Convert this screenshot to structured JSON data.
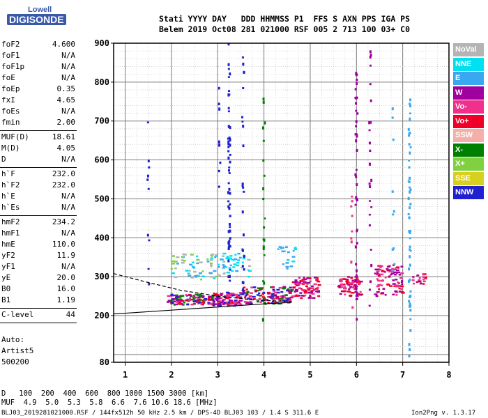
{
  "logo": {
    "line1": "Lowell",
    "line2": "DIGISONDE"
  },
  "header": {
    "labels_row": "Stati YYYY DAY   DDD HHMMSS P1  FFS S AXN PPS IGA PS",
    "values_row": "Belem 2019 Oct08 281 021000 RSF 005 2 713 100 03+ C0"
  },
  "params": [
    {
      "group": 1,
      "k": "foF2",
      "v": "4.600"
    },
    {
      "group": 1,
      "k": "foF1",
      "v": "N/A"
    },
    {
      "group": 1,
      "k": "foF1p",
      "v": "N/A"
    },
    {
      "group": 1,
      "k": "foE",
      "v": "N/A"
    },
    {
      "group": 1,
      "k": "foEp",
      "v": "0.35"
    },
    {
      "group": 1,
      "k": "fxI",
      "v": "4.65"
    },
    {
      "group": 1,
      "k": "foEs",
      "v": "N/A"
    },
    {
      "group": 1,
      "k": "fmin",
      "v": "2.00"
    },
    {
      "group": 2,
      "k": "MUF(D)",
      "v": "18.61"
    },
    {
      "group": 2,
      "k": "M(D)",
      "v": "4.05"
    },
    {
      "group": 2,
      "k": "D",
      "v": "N/A"
    },
    {
      "group": 3,
      "k": "h`F",
      "v": "232.0"
    },
    {
      "group": 3,
      "k": "h`F2",
      "v": "232.0"
    },
    {
      "group": 3,
      "k": "h`E",
      "v": "N/A"
    },
    {
      "group": 3,
      "k": "h`Es",
      "v": "N/A"
    },
    {
      "group": 4,
      "k": "hmF2",
      "v": "234.2"
    },
    {
      "group": 4,
      "k": "hmF1",
      "v": "N/A"
    },
    {
      "group": 4,
      "k": "hmE",
      "v": "110.0"
    },
    {
      "group": 4,
      "k": "yF2",
      "v": "11.9"
    },
    {
      "group": 4,
      "k": "yF1",
      "v": "N/A"
    },
    {
      "group": 4,
      "k": "yE",
      "v": "20.0"
    },
    {
      "group": 4,
      "k": "B0",
      "v": "16.0"
    },
    {
      "group": 4,
      "k": "B1",
      "v": "1.19"
    },
    {
      "group": 5,
      "k": "C-level",
      "v": "44"
    }
  ],
  "auto": {
    "line1": "Auto:",
    "line2": "Artist5",
    "line3": "500200"
  },
  "legend": [
    {
      "label": "NoVal",
      "color": "#b4b4b4"
    },
    {
      "label": "NNE",
      "color": "#00e0f0"
    },
    {
      "label": "E",
      "color": "#3aa8f0"
    },
    {
      "label": "W",
      "color": "#a000a0"
    },
    {
      "label": "Vo-",
      "color": "#f0308c"
    },
    {
      "label": "Vo+",
      "color": "#f00028"
    },
    {
      "label": "SSW",
      "color": "#f4b0a8"
    },
    {
      "label": "X-",
      "color": "#008000"
    },
    {
      "label": "X+",
      "color": "#80d040"
    },
    {
      "label": "SSE",
      "color": "#d8d020"
    },
    {
      "label": "NNW",
      "color": "#2020d0"
    }
  ],
  "footer": {
    "d_row": "D   100  200  400  600  800 1000 1500 3000 [km]",
    "muf_row": "MUF  4.9  5.0  5.3  5.8  6.6  7.6 10.6 18.6 [MHz]",
    "info_left": "BLJ03_2019281021000.RSF / 144fx512h 50 kHz 2.5 km / DPS-4D BLJ03 103 / 1.4 S 311.6 E",
    "info_right": "Ion2Png v. 1.3.17"
  },
  "chart_data": {
    "type": "scatter",
    "title": "",
    "xlabel": "",
    "ylabel": "",
    "xlim": [
      0.75,
      8
    ],
    "ylim": [
      80,
      900
    ],
    "x_ticks": [
      1,
      2,
      3,
      4,
      5,
      6,
      7,
      8
    ],
    "y_ticks": [
      80,
      200,
      300,
      400,
      500,
      600,
      700,
      800,
      900
    ],
    "grid": true,
    "traces": [
      {
        "name": "F2 O-trace",
        "style": "solid",
        "points": [
          [
            0.75,
            204
          ],
          [
            2.0,
            214
          ],
          [
            3.0,
            222
          ],
          [
            4.0,
            230
          ],
          [
            4.6,
            234
          ]
        ]
      },
      {
        "name": "F2 X-trace",
        "style": "dashed",
        "points": [
          [
            0.75,
            308
          ],
          [
            1.5,
            285
          ],
          [
            2.2,
            265
          ],
          [
            3.0,
            250
          ],
          [
            3.8,
            240
          ],
          [
            4.6,
            236
          ]
        ]
      }
    ],
    "echo_clusters": [
      {
        "x": [
          1.9,
          2.9
        ],
        "h": [
          228,
          255
        ],
        "colors": [
          "#f00028",
          "#a000a0",
          "#f0308c",
          "#008000",
          "#2020d0"
        ],
        "n": 120
      },
      {
        "x": [
          2.9,
          3.5
        ],
        "h": [
          225,
          260
        ],
        "colors": [
          "#f00028",
          "#a000a0",
          "#f0308c",
          "#2020d0"
        ],
        "n": 110
      },
      {
        "x": [
          3.5,
          4.6
        ],
        "h": [
          230,
          275
        ],
        "colors": [
          "#f00028",
          "#a000a0",
          "#f0308c",
          "#008000",
          "#2020d0"
        ],
        "n": 140
      },
      {
        "x": [
          4.6,
          5.2
        ],
        "h": [
          245,
          300
        ],
        "colors": [
          "#f00028",
          "#f0308c",
          "#a000a0"
        ],
        "n": 90
      },
      {
        "x": [
          5.6,
          6.1
        ],
        "h": [
          250,
          300
        ],
        "colors": [
          "#f00028",
          "#f0308c",
          "#a000a0"
        ],
        "n": 70
      },
      {
        "x": [
          6.4,
          7.0
        ],
        "h": [
          250,
          330
        ],
        "colors": [
          "#f00028",
          "#f0308c",
          "#a000a0"
        ],
        "n": 90
      },
      {
        "x": [
          7.2,
          7.5
        ],
        "h": [
          280,
          310
        ],
        "colors": [
          "#f00028",
          "#f0308c",
          "#a000a0"
        ],
        "n": 20
      },
      {
        "x": [
          2.0,
          3.0
        ],
        "h": [
          290,
          360
        ],
        "colors": [
          "#3aa8f0",
          "#00e0f0",
          "#b4b4b4",
          "#80d040"
        ],
        "n": 60
      },
      {
        "x": [
          3.0,
          3.7
        ],
        "h": [
          300,
          360
        ],
        "colors": [
          "#3aa8f0",
          "#00e0f0",
          "#b4b4b4"
        ],
        "n": 45
      },
      {
        "x": [
          4.3,
          4.7
        ],
        "h": [
          320,
          380
        ],
        "colors": [
          "#3aa8f0",
          "#00e0f0"
        ],
        "n": 20
      }
    ],
    "echo_columns": [
      {
        "x": 3.25,
        "h": [
          280,
          900
        ],
        "color": "#2020d0",
        "n": 55
      },
      {
        "x": 3.55,
        "h": [
          240,
          900
        ],
        "color": "#2020d0",
        "n": 25
      },
      {
        "x": 6.0,
        "h": [
          190,
          850
        ],
        "color": "#a000a0",
        "n": 45
      },
      {
        "x": 6.3,
        "h": [
          170,
          890
        ],
        "color": "#a000a0",
        "n": 25
      },
      {
        "x": 7.15,
        "h": [
          80,
          760
        ],
        "color": "#3aa8f0",
        "n": 55
      },
      {
        "x": 3.05,
        "h": [
          520,
          800
        ],
        "color": "#2020d0",
        "n": 8
      },
      {
        "x": 4.0,
        "h": [
          160,
          800
        ],
        "color": "#008000",
        "n": 20
      },
      {
        "x": 1.5,
        "h": [
          260,
          720
        ],
        "color": "#2020d0",
        "n": 10
      },
      {
        "x": 5.9,
        "h": [
          200,
          580
        ],
        "color": "#f0308c",
        "n": 10
      },
      {
        "x": 6.8,
        "h": [
          280,
          760
        ],
        "color": "#3aa8f0",
        "n": 10
      }
    ]
  }
}
